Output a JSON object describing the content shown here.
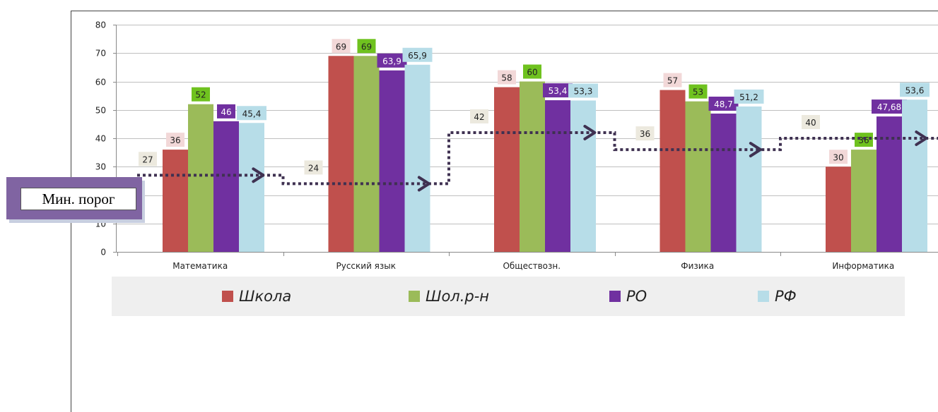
{
  "chart_data": {
    "type": "bar",
    "categories": [
      "Математика",
      "Русский язык",
      "Обществозн.",
      "Физика",
      "Информатика"
    ],
    "series": [
      {
        "name": "Школа",
        "color": "#c0504d",
        "label_bg": "#f2d8d8",
        "label_color": "#222222",
        "values": [
          36,
          69,
          58,
          57,
          30
        ],
        "labels": [
          "36",
          "69",
          "58",
          "57",
          "30"
        ]
      },
      {
        "name": "Шол.р-н",
        "color": "#9bbb59",
        "label_bg": "#6fc21f",
        "label_color": "#222222",
        "values": [
          52,
          69,
          60,
          53,
          36
        ],
        "labels": [
          "52",
          "69",
          "60",
          "53",
          "36"
        ]
      },
      {
        "name": "РО",
        "color": "#7030a0",
        "label_bg": "#7030a0",
        "label_color": "#ffffff",
        "values": [
          46,
          63.9,
          53.4,
          48.7,
          47.68
        ],
        "labels": [
          "46",
          "63,9",
          "53,4",
          "48,7",
          "47,68"
        ]
      },
      {
        "name": "РФ",
        "color": "#b7dde8",
        "label_bg": "#b7dde8",
        "label_color": "#222222",
        "values": [
          45.4,
          65.9,
          53.3,
          51.2,
          53.6
        ],
        "labels": [
          "45,4",
          "65,9",
          "53,3",
          "51,2",
          "53,6"
        ]
      }
    ],
    "threshold": {
      "values": [
        27,
        24,
        42,
        36,
        40
      ],
      "labels": [
        "27",
        "24",
        "42",
        "36",
        "40"
      ],
      "color": "#3f3151"
    },
    "ylim": [
      0,
      80
    ],
    "yticks": [
      0,
      10,
      20,
      30,
      40,
      50,
      60,
      70,
      80
    ],
    "grid": true,
    "legend_position": "bottom"
  },
  "legend": {
    "items": [
      {
        "label": "Школа",
        "color": "#c0504d"
      },
      {
        "label": "Шол.р-н",
        "color": "#9bbb59"
      },
      {
        "label": "РО",
        "color": "#7030a0"
      },
      {
        "label": "РФ",
        "color": "#b7dde8"
      }
    ]
  },
  "callout": {
    "label": "Мин. порог"
  }
}
